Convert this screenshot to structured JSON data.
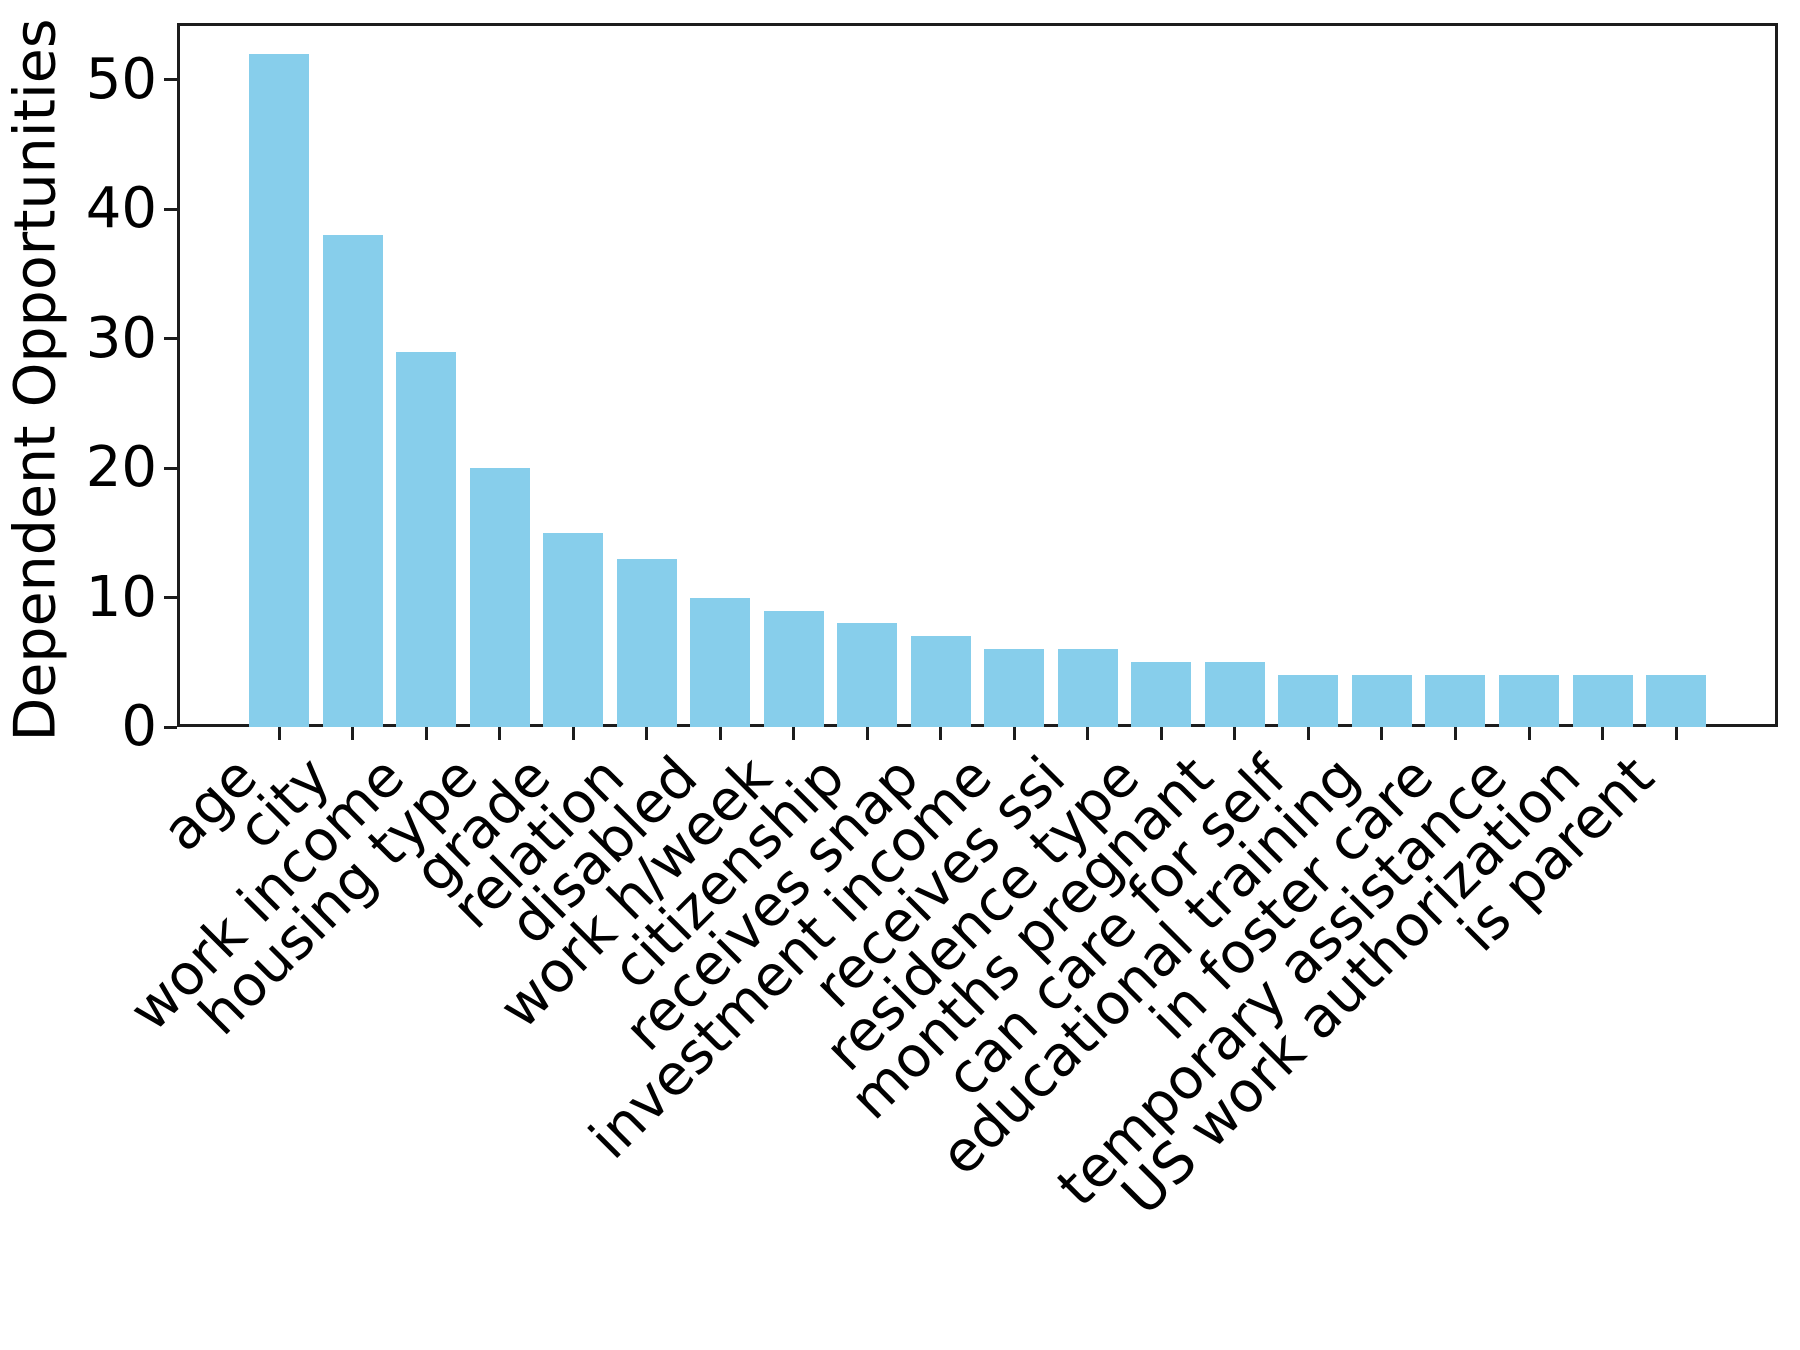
{
  "chart_data": {
    "type": "bar",
    "title": "",
    "xlabel": "",
    "ylabel": "Dependent Opportunities",
    "categories": [
      "age",
      "city",
      "work income",
      "housing type",
      "grade",
      "relation",
      "disabled",
      "work h/week",
      "citizenship",
      "receives snap",
      "investment income",
      "receives ssi",
      "residence type",
      "months pregnant",
      "can care for self",
      "educational training",
      "in foster care",
      "temporary assistance",
      "US work authorization",
      "is parent"
    ],
    "values": [
      52,
      38,
      29,
      20,
      15,
      13,
      10,
      9,
      8,
      7,
      6,
      6,
      5,
      5,
      4,
      4,
      4,
      4,
      4,
      4
    ],
    "yticks": [
      0,
      10,
      20,
      30,
      40,
      50
    ],
    "ylim": [
      0,
      54.4
    ],
    "grid": false,
    "legend": "none",
    "bar_color": "#87CEEB",
    "axis_color": "#1c1c1c",
    "text_color": "#000000"
  }
}
